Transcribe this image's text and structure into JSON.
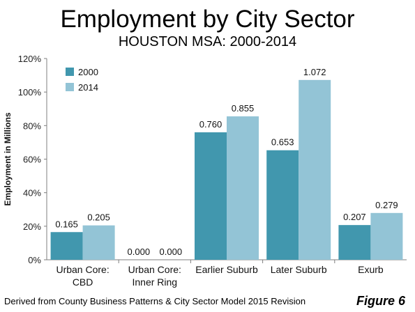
{
  "header": {
    "title": "Employment by City Sector",
    "subtitle": "HOUSTON MSA: 2000-2014"
  },
  "footer": {
    "source": "Derived from  County Business Patterns & City Sector Model 2015 Revision",
    "figure": "Figure 6"
  },
  "chart_data": {
    "type": "bar",
    "ylabel": "Employment in Millions",
    "xlabel": "",
    "ylim": [
      0,
      120
    ],
    "yticks": [
      0,
      20,
      40,
      60,
      80,
      100,
      120
    ],
    "ytick_labels": [
      "0%",
      "20%",
      "40%",
      "60%",
      "80%",
      "100%",
      "120%"
    ],
    "categories": [
      [
        "Urban Core:",
        "CBD"
      ],
      [
        "Urban Core:",
        "Inner Ring"
      ],
      [
        "Earlier Suburb"
      ],
      [
        "Later Suburb"
      ],
      [
        "Exurb"
      ]
    ],
    "series": [
      {
        "name": "2000",
        "color": "#4197AE",
        "values": [
          16.5,
          0,
          76.0,
          65.3,
          20.7
        ],
        "labels": [
          "0.165",
          "0.000",
          "0.760",
          "0.653",
          "0.207"
        ]
      },
      {
        "name": "2014",
        "color": "#93C4D6",
        "values": [
          20.5,
          0,
          85.5,
          107.2,
          27.9
        ],
        "labels": [
          "0.205",
          "0.000",
          "0.855",
          "1.072",
          "0.279"
        ]
      }
    ],
    "grid": false,
    "legend": "top-left"
  }
}
